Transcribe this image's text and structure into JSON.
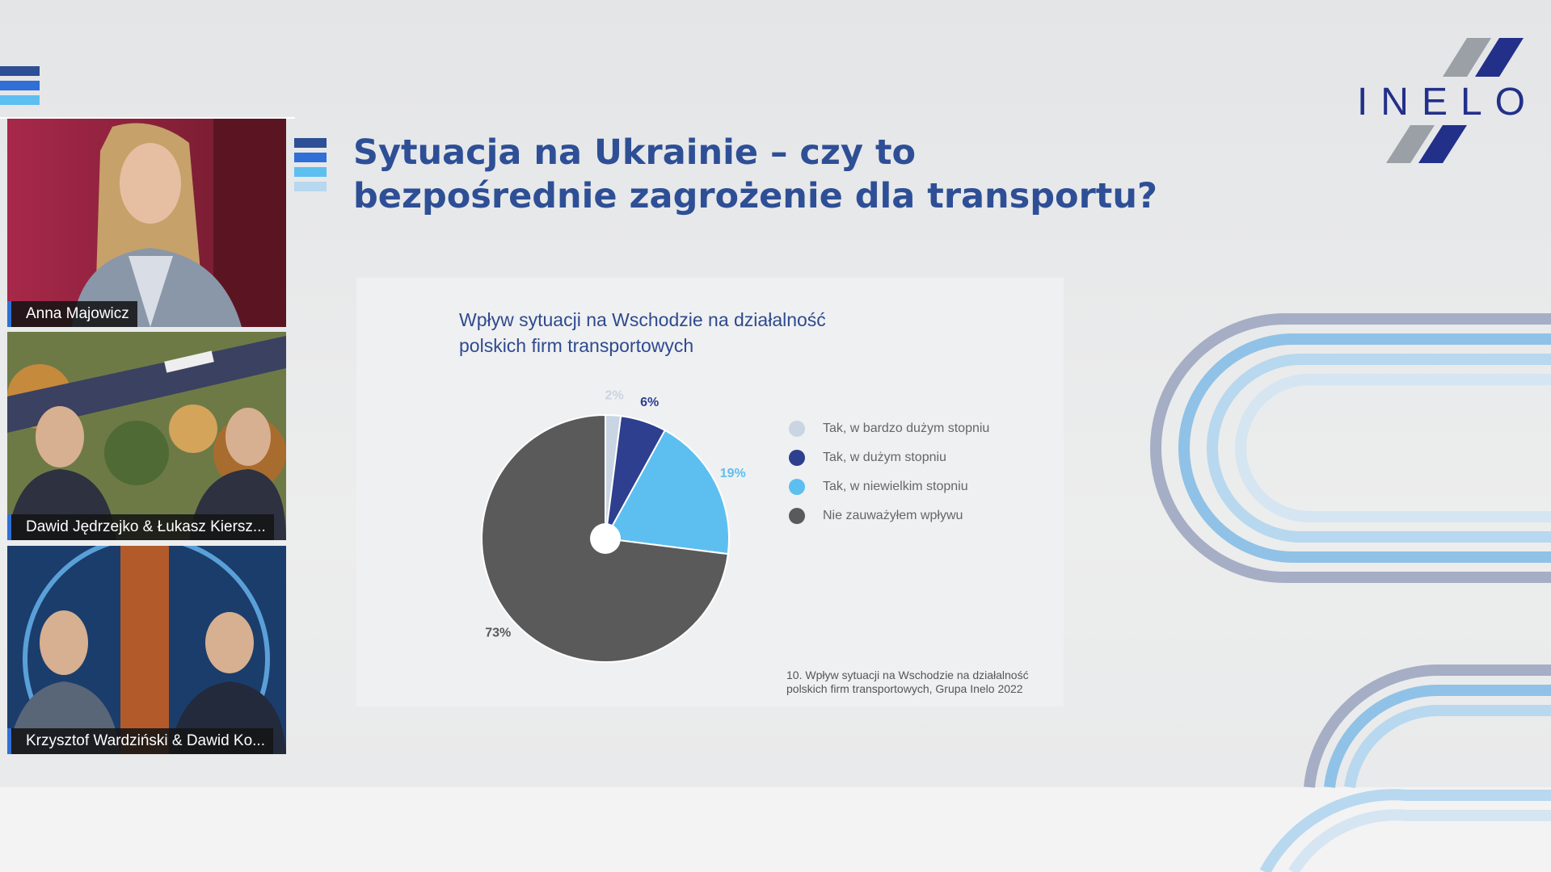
{
  "participants": [
    {
      "name": "Anna Majowicz"
    },
    {
      "name": "Dawid Jędrzejko & Łukasz Kiersz..."
    },
    {
      "name": "Krzysztof Wardziński & Dawid Ko..."
    }
  ],
  "slide": {
    "title_lines": [
      "Sytuacja na Ukrainie – czy to",
      "bezpośrednie zagrożenie dla transportu?"
    ],
    "logo": "INELO"
  },
  "chart_data": {
    "type": "pie",
    "title": "Wpływ sytuacji na Wschodzie na działalność polskich firm transportowych",
    "categories": [
      "Tak, w bardzo dużym stopniu",
      "Tak, w dużym stopniu",
      "Tak, w niewielkim stopniu",
      "Nie zauważyłem wpływu"
    ],
    "values": [
      2,
      6,
      19,
      73
    ],
    "value_labels": [
      "2%",
      "6%",
      "19%",
      "73%"
    ],
    "colors": [
      "#c9d5e2",
      "#2d3f8e",
      "#5dbff0",
      "#5a5a5a"
    ],
    "source": "10. Wpływ sytuacji na Wschodzie na działalność polskich firm transportowych, Grupa Inelo 2022"
  }
}
